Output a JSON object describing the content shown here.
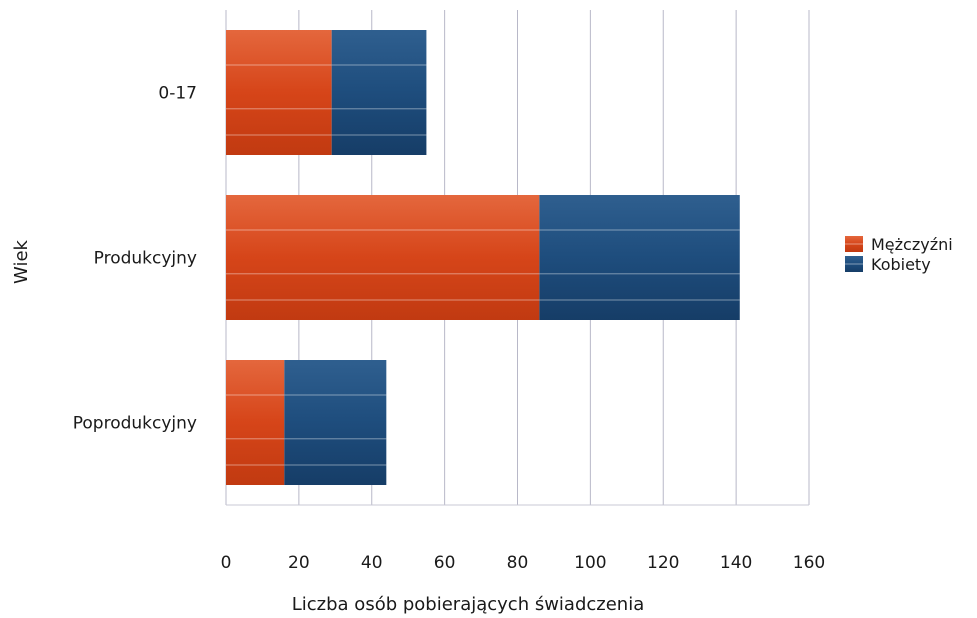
{
  "chart_data": {
    "type": "bar",
    "orientation": "horizontal",
    "stacked": true,
    "categories": [
      "0-17",
      "Produkcyjny",
      "Poprodukcyjny"
    ],
    "series": [
      {
        "name": "Mężczyźni",
        "values": [
          29,
          86,
          16
        ],
        "color": "#d9481c"
      },
      {
        "name": "Kobiety",
        "values": [
          26,
          55,
          28
        ],
        "color": "#1e4d7d"
      }
    ],
    "xlabel": "Liczba osób pobierających świadczenia",
    "ylabel": "Wiek",
    "xlim": [
      0,
      160
    ],
    "xticks": [
      "0",
      "20",
      "40",
      "60",
      "80",
      "100",
      "120",
      "140",
      "160"
    ],
    "grid": "vertical",
    "legend_position": "right"
  }
}
